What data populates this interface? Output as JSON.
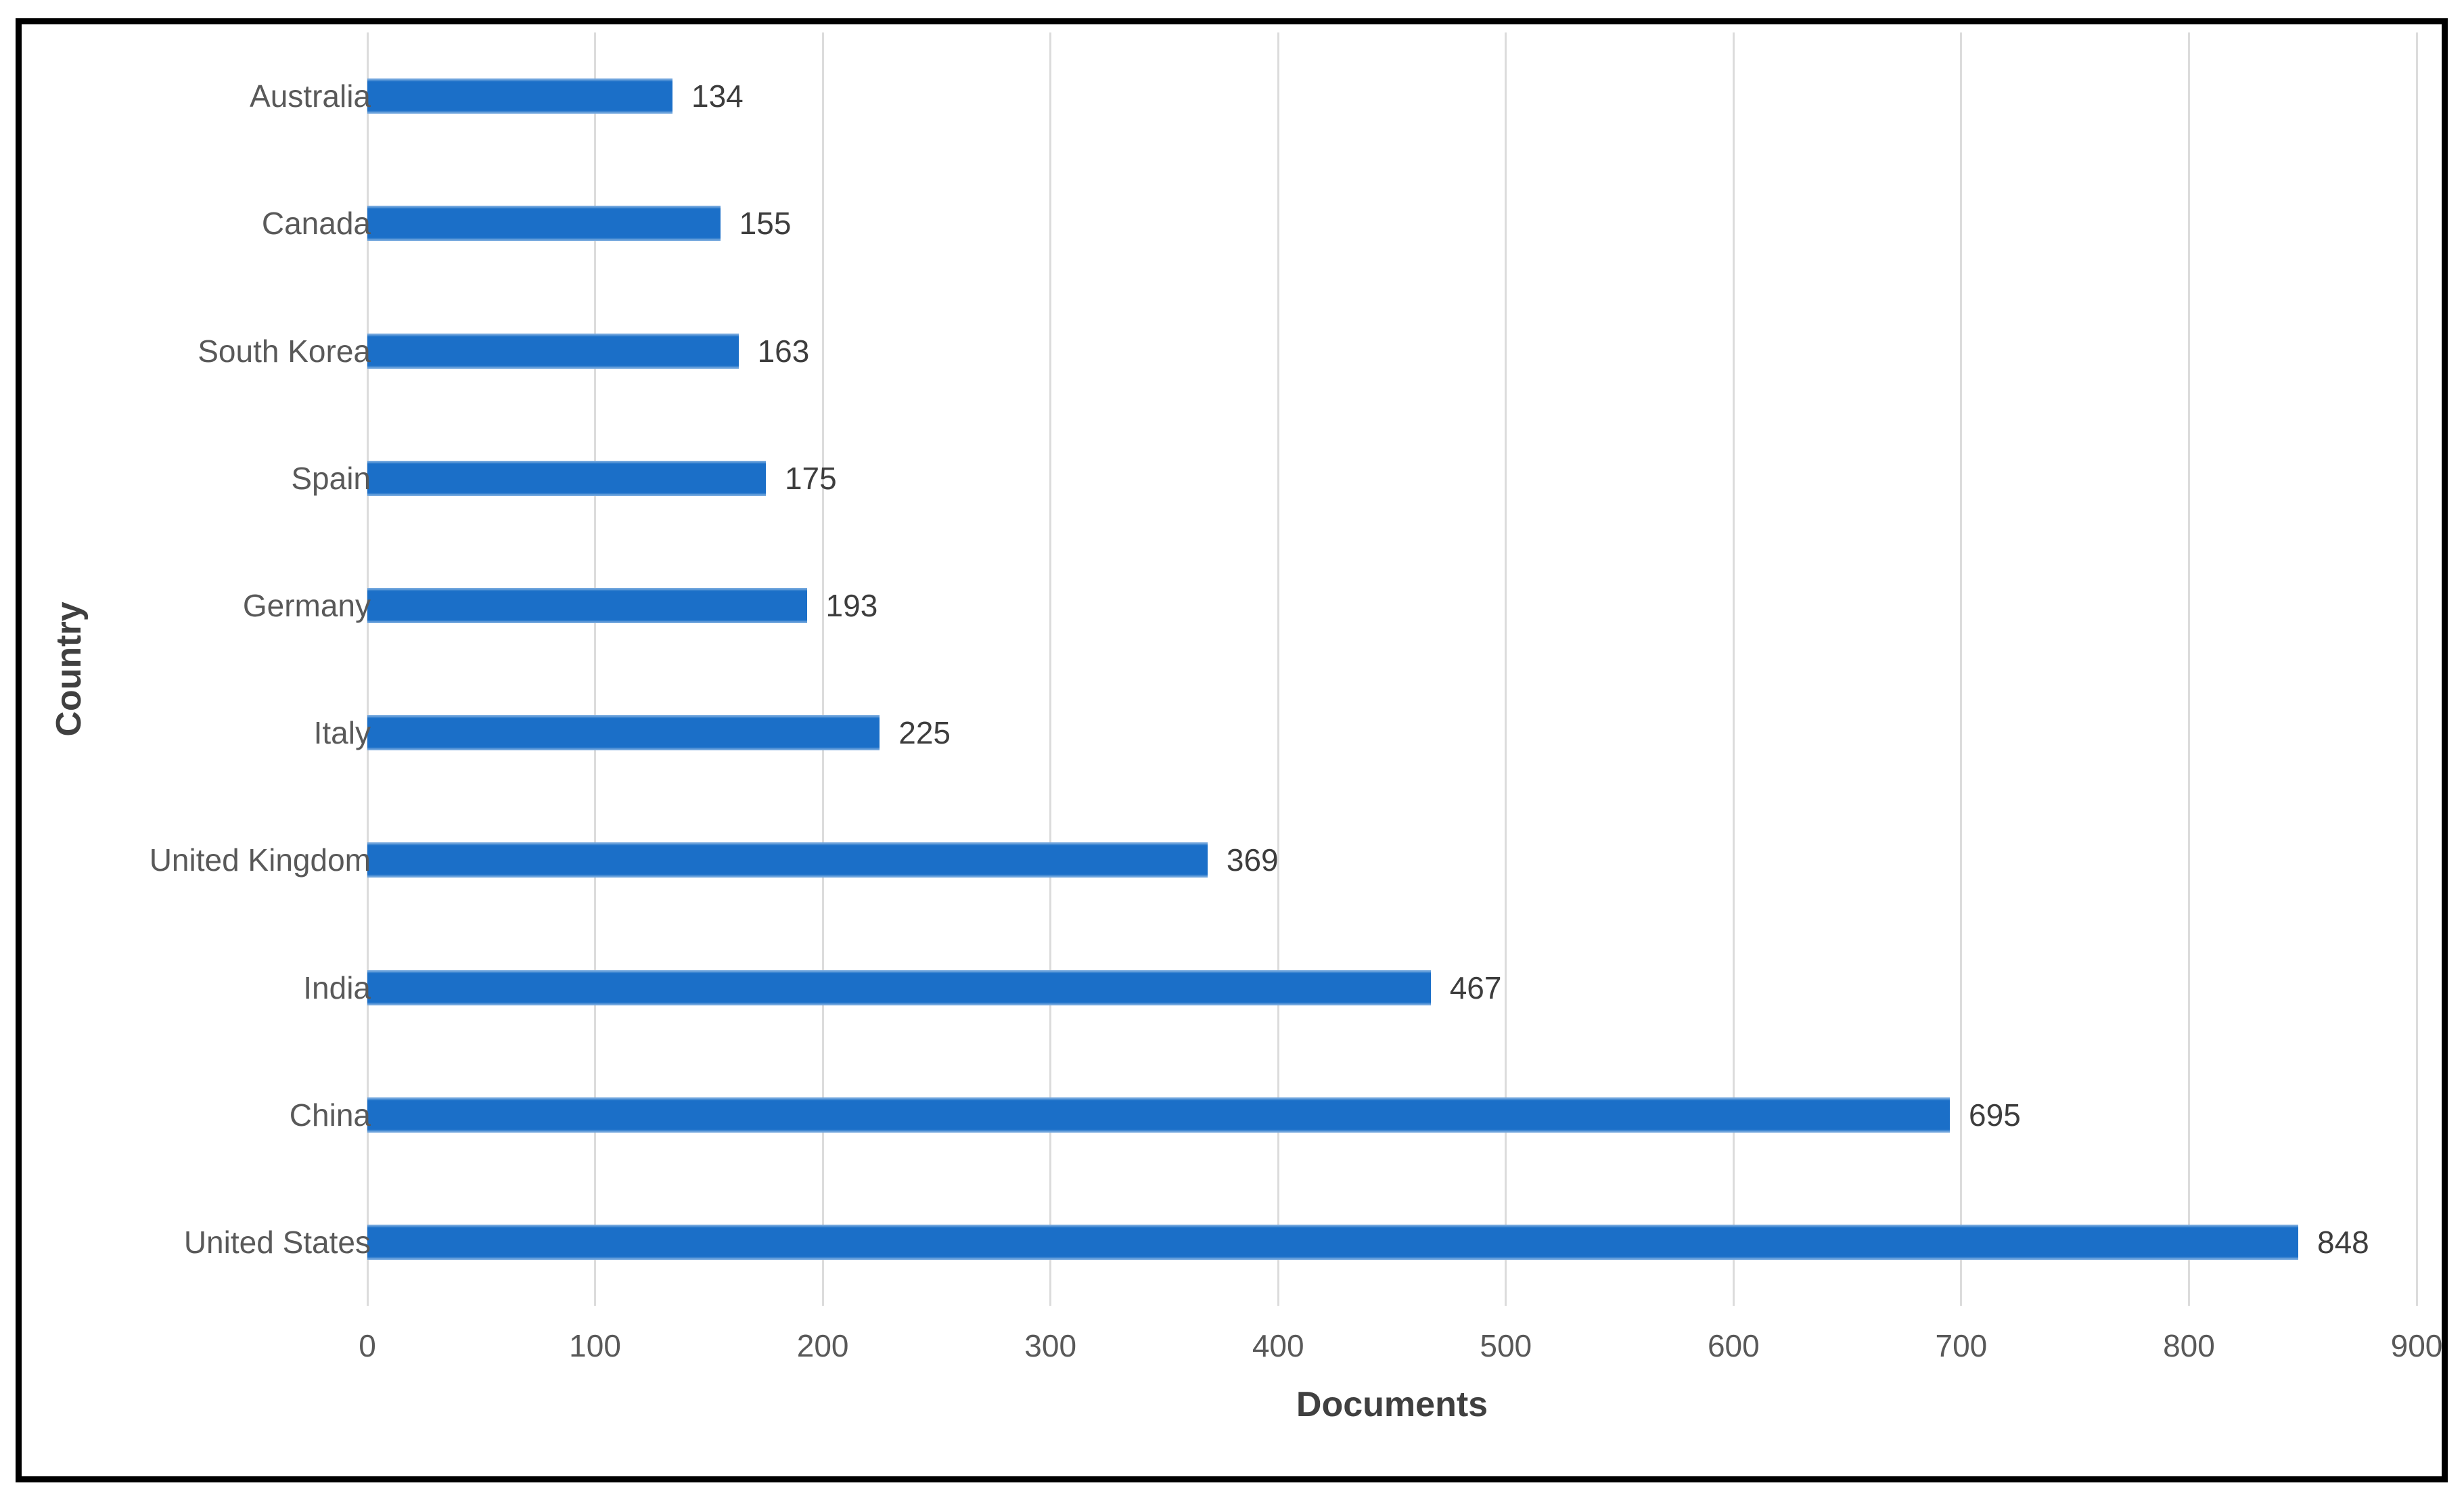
{
  "chart_data": {
    "type": "bar",
    "orientation": "horizontal",
    "title": "",
    "xlabel": "Documents",
    "ylabel": "Country",
    "categories": [
      "Australia",
      "Canada",
      "South Korea",
      "Spain",
      "Germany",
      "Italy",
      "United Kingdom",
      "India",
      "China",
      "United States"
    ],
    "values": [
      134,
      155,
      163,
      175,
      193,
      225,
      369,
      467,
      695,
      848
    ],
    "xlim": [
      0,
      900
    ],
    "xticks": [
      0,
      100,
      200,
      300,
      400,
      500,
      600,
      700,
      800,
      900
    ],
    "grid": "vertical-only",
    "legend": "none",
    "value_labels": "outside-end"
  },
  "colors": {
    "bar_fill": "#1b6fc8",
    "gridline": "#dcdcdc",
    "category_text": "#595959",
    "tick_text": "#595959",
    "value_text": "#3d3d3d",
    "axis_title_text": "#404040",
    "frame_border": "#000000",
    "background": "#ffffff"
  }
}
